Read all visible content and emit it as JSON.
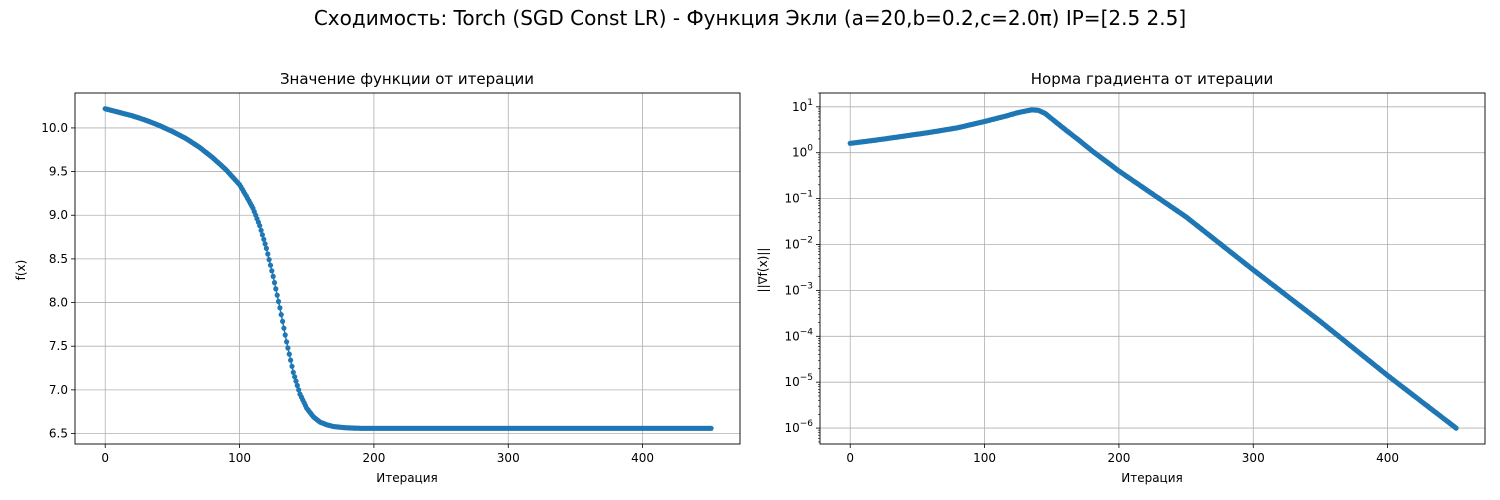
{
  "suptitle": "Сходимость: Torch (SGD Const LR) - Функция Экли (a=20,b=0.2,c=2.0π) IP=[2.5 2.5]",
  "colors": {
    "series": "#1f77b4",
    "grid": "#b0b0b0"
  },
  "chart_data": [
    {
      "type": "line",
      "title": "Значение функции от итерации",
      "xlabel": "Итерация",
      "ylabel": "f(x)",
      "xlim": [
        -22.5,
        472.5
      ],
      "ylim": [
        6.38,
        10.4
      ],
      "xticks": [
        0,
        100,
        200,
        300,
        400
      ],
      "yticks": [
        6.5,
        7.0,
        7.5,
        8.0,
        8.5,
        9.0,
        9.5,
        10.0
      ],
      "ytick_labels": [
        "6.5",
        "7.0",
        "7.5",
        "8.0",
        "8.5",
        "9.0",
        "9.5",
        "10.0"
      ],
      "grid": true,
      "marker": "circle",
      "x": [
        0,
        10,
        20,
        30,
        40,
        50,
        60,
        70,
        80,
        90,
        100,
        105,
        110,
        115,
        120,
        125,
        130,
        135,
        140,
        145,
        150,
        155,
        160,
        165,
        170,
        180,
        190,
        200,
        250,
        300,
        350,
        400,
        451
      ],
      "y": [
        10.22,
        10.18,
        10.14,
        10.09,
        10.03,
        9.96,
        9.88,
        9.78,
        9.66,
        9.52,
        9.35,
        9.22,
        9.08,
        8.88,
        8.62,
        8.3,
        7.94,
        7.55,
        7.2,
        6.95,
        6.79,
        6.69,
        6.63,
        6.6,
        6.58,
        6.565,
        6.56,
        6.56,
        6.56,
        6.56,
        6.56,
        6.56,
        6.56
      ]
    },
    {
      "type": "line",
      "title": "Норма градиента от итерации",
      "xlabel": "Итерация",
      "ylabel": "||∇f(x)||",
      "xlim": [
        -22.5,
        472.5
      ],
      "ylim": [
        4.5e-07,
        20
      ],
      "yscale": "log",
      "xticks": [
        0,
        100,
        200,
        300,
        400
      ],
      "yticks": [
        1e-06,
        1e-05,
        0.0001,
        0.001,
        0.01,
        0.1,
        1.0,
        10.0
      ],
      "ytick_exponents": [
        "−6",
        "−5",
        "−4",
        "−3",
        "−2",
        "−1",
        "0",
        "1"
      ],
      "grid": true,
      "marker": "circle",
      "x": [
        0,
        20,
        40,
        60,
        80,
        100,
        115,
        125,
        135,
        140,
        145,
        150,
        160,
        170,
        180,
        200,
        250,
        300,
        350,
        400,
        451
      ],
      "y": [
        1.6,
        1.9,
        2.3,
        2.8,
        3.5,
        4.8,
        6.2,
        7.5,
        8.6,
        8.4,
        7.2,
        5.5,
        3.2,
        1.9,
        1.1,
        0.4,
        0.04,
        0.0028,
        0.00021,
        1.4e-05,
        1e-06
      ]
    }
  ]
}
